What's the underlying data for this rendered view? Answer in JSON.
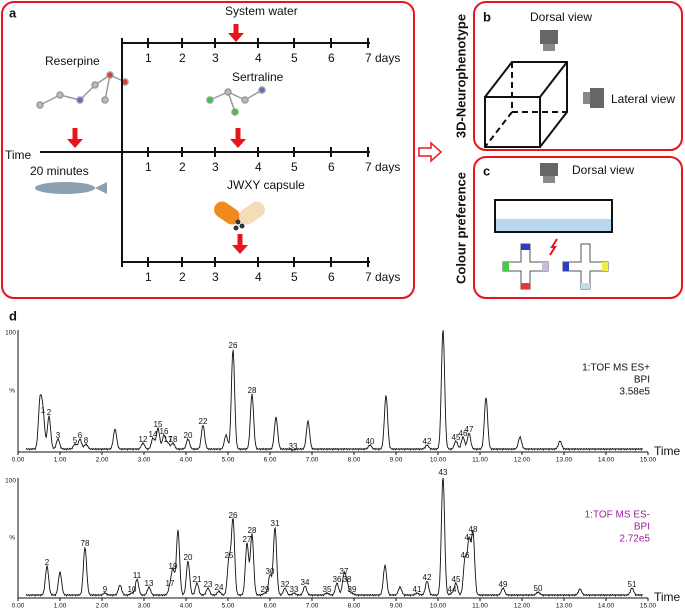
{
  "panel_a": {
    "label": "a",
    "time": "Time",
    "days": [
      "1",
      "2",
      "3",
      "4",
      "5",
      "6",
      "7 days"
    ],
    "reserpine": "Reserpine",
    "duration": "20 minutes",
    "treatments": [
      "System water",
      "Sertraline",
      "JWXY capsule"
    ]
  },
  "panel_b": {
    "label": "b",
    "side": "3D-Neurophenotype",
    "dorsal": "Dorsal view",
    "lateral": "Lateral view"
  },
  "panel_c": {
    "label": "c",
    "side": "Colour preference",
    "dorsal": "Dorsal view"
  },
  "panel_d": {
    "label": "d",
    "x_ticks": [
      "0.00",
      "1.00",
      "2.00",
      "3.00",
      "4.00",
      "5.00",
      "6.00",
      "7.00",
      "8.00",
      "9.00",
      "10.00",
      "11.00",
      "12.00",
      "13.00",
      "14.00",
      "15.00"
    ],
    "axis_label": "Time",
    "y_top": "100",
    "y_unit": "%",
    "traces": [
      {
        "mode": [
          "1:TOF MS ES+",
          "BPI",
          "3.58e5"
        ],
        "peaks": [
          "1",
          "2",
          "3",
          "5",
          "6",
          "8",
          "12",
          "14",
          "15",
          "16",
          "17",
          "18",
          "20",
          "22",
          "26",
          "28",
          "33",
          "40",
          "42",
          "45",
          "46",
          "47"
        ]
      },
      {
        "mode": [
          "1:TOF MS ES-",
          "BPI",
          "2.72e5"
        ],
        "peaks": [
          "2",
          "78",
          "9",
          "10",
          "11",
          "13",
          "17",
          "19",
          "20",
          "21",
          "23",
          "24",
          "25",
          "26",
          "27",
          "28",
          "29",
          "30",
          "31",
          "32",
          "33",
          "34",
          "35",
          "36",
          "37",
          "38",
          "39",
          "41",
          "42",
          "43",
          "44",
          "45",
          "46",
          "47",
          "48",
          "49",
          "50",
          "51"
        ]
      }
    ]
  }
}
